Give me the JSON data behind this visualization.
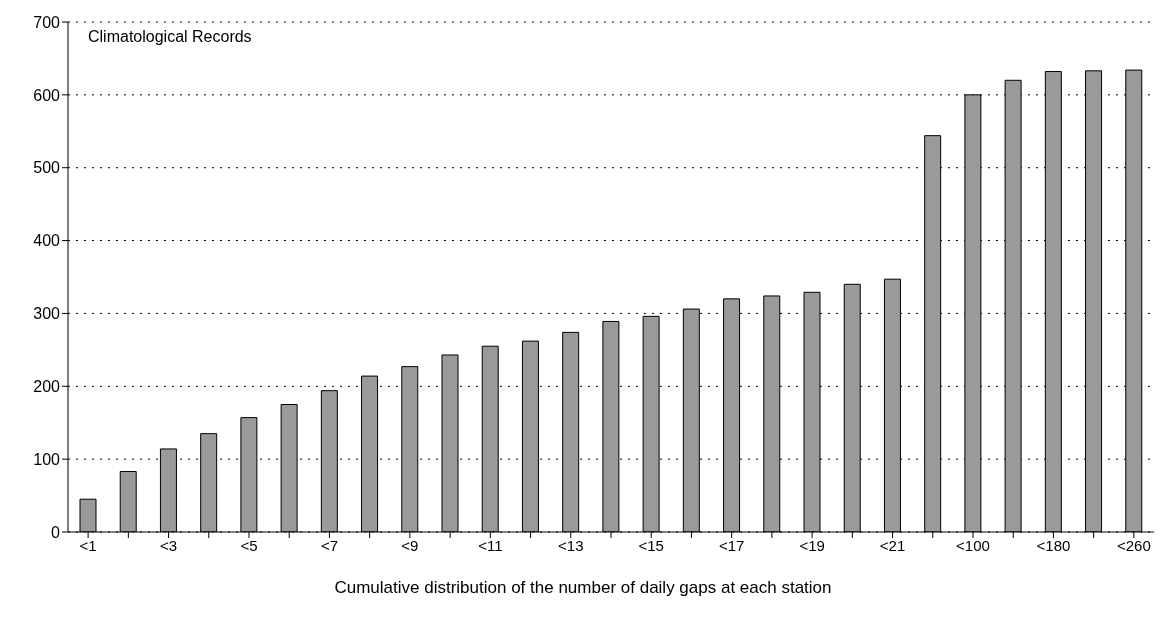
{
  "chart_data": {
    "type": "bar",
    "xlabel": "Cumulative distribution of the number of daily gaps at each station",
    "annotations": [
      "Climatological Records"
    ],
    "categories": [
      "<1",
      null,
      "<3",
      null,
      "<5",
      null,
      "<7",
      null,
      "<9",
      null,
      "<11",
      null,
      "<13",
      null,
      "<15",
      null,
      "<17",
      null,
      "<19",
      null,
      "<21",
      null,
      "<100",
      null,
      "<180",
      null,
      "<260"
    ],
    "values": [
      45,
      83,
      114,
      135,
      157,
      175,
      194,
      214,
      227,
      243,
      255,
      262,
      274,
      289,
      296,
      306,
      320,
      324,
      329,
      340,
      347,
      544,
      600,
      620,
      632,
      633,
      634
    ],
    "color": "#9a9a9a",
    "ylim": [
      0,
      700
    ],
    "yticks": [
      0,
      100,
      200,
      300,
      400,
      500,
      600,
      700
    ],
    "grid": "y",
    "line_style": "dotted"
  }
}
